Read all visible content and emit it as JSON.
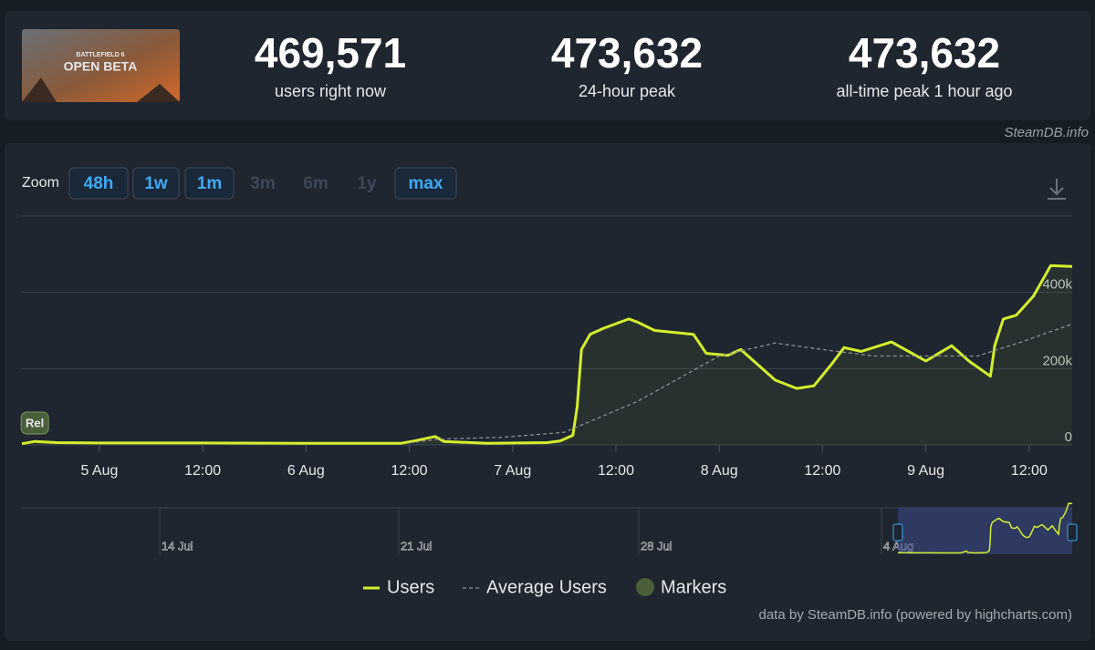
{
  "header": {
    "thumbnail": {
      "small": "BATTLEFIELD 6",
      "big": "OPEN BETA"
    },
    "stats": [
      {
        "value": "469,571",
        "label": "users right now"
      },
      {
        "value": "473,632",
        "label": "24-hour peak"
      },
      {
        "value": "473,632",
        "label": "all-time peak 1 hour ago"
      }
    ],
    "brand": "SteamDB.info"
  },
  "zoom": {
    "label": "Zoom",
    "buttons": [
      "48h",
      "1w",
      "1m",
      "3m",
      "6m",
      "1y",
      "max"
    ],
    "enabled": [
      true,
      true,
      true,
      false,
      false,
      false,
      true
    ]
  },
  "chart_data": {
    "type": "line",
    "xlim": [
      -9,
      113
    ],
    "xticks": [
      {
        "value": 0,
        "label": "5 Aug"
      },
      {
        "value": 12,
        "label": "12:00"
      },
      {
        "value": 24,
        "label": "6 Aug"
      },
      {
        "value": 36,
        "label": "12:00"
      },
      {
        "value": 48,
        "label": "7 Aug"
      },
      {
        "value": 60,
        "label": "12:00"
      },
      {
        "value": 72,
        "label": "8 Aug"
      },
      {
        "value": 84,
        "label": "12:00"
      },
      {
        "value": 96,
        "label": "9 Aug"
      },
      {
        "value": 108,
        "label": "12:00"
      }
    ],
    "ylim": [
      0,
      600000
    ],
    "yticks": [
      {
        "value": 0,
        "label": "0"
      },
      {
        "value": 200000,
        "label": "200k"
      },
      {
        "value": 400000,
        "label": "400k"
      }
    ],
    "grid": true,
    "series": [
      {
        "name": "Users",
        "color": "#d2f02c",
        "x": [
          -9,
          -7.5,
          -5,
          0,
          12,
          24,
          35,
          36.5,
          39,
          40,
          45,
          52,
          53.5,
          55,
          55.5,
          56,
          57,
          58.5,
          61.5,
          62.5,
          64.5,
          69,
          70.5,
          73,
          74.5,
          76.5,
          78.5,
          81,
          83,
          85,
          86.5,
          88.5,
          92,
          94,
          96,
          99,
          101,
          103.5,
          104,
          105,
          106.5,
          108.5,
          110.5,
          113
        ],
        "values": [
          3000,
          9000,
          6000,
          5000,
          5000,
          4000,
          4000,
          10000,
          22000,
          9000,
          4000,
          6000,
          10000,
          25000,
          100000,
          250000,
          290000,
          305000,
          330000,
          322000,
          300000,
          290000,
          240000,
          235000,
          250000,
          210000,
          170000,
          148000,
          155000,
          210000,
          255000,
          245000,
          270000,
          245000,
          220000,
          260000,
          220000,
          180000,
          260000,
          330000,
          340000,
          390000,
          470000,
          468000
        ]
      },
      {
        "name": "Average Users",
        "color": "#8a8f96",
        "x": [
          36,
          39.5,
          47,
          54,
          62.5,
          72,
          78.5,
          84,
          90,
          102,
          107,
          113
        ],
        "values": [
          5000,
          15000,
          20000,
          33000,
          114000,
          233000,
          267000,
          250000,
          233000,
          233000,
          269000,
          317000
        ]
      }
    ],
    "markers": {
      "name": "Markers",
      "color": "#4a5e3a",
      "items": [
        {
          "x": -7.5,
          "label": "Rel"
        }
      ]
    },
    "navigator": [
      "14 Jul",
      "21 Jul",
      "28 Jul",
      "4 Aug"
    ],
    "credits": "data by SteamDB.info (powered by highcharts.com)"
  }
}
